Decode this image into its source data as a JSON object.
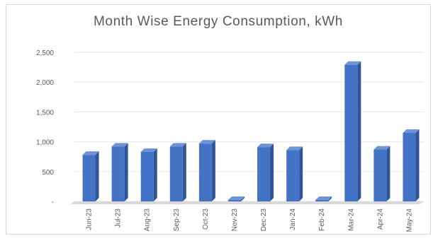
{
  "chart_data": {
    "type": "bar",
    "title": "Month Wise Energy Consumption, kWh",
    "categories": [
      "Jun-23",
      "Jul-23",
      "Aug-23",
      "Sep-23",
      "Oct-23",
      "Nov-23",
      "Dec-23",
      "Jan-24",
      "Feb-24",
      "Mar-24",
      "Apr-24",
      "May-24"
    ],
    "values": [
      780,
      920,
      830,
      920,
      970,
      20,
      910,
      860,
      10,
      2290,
      870,
      1150
    ],
    "ylim": [
      0,
      2500
    ],
    "yticks": [
      0,
      500,
      1000,
      1500,
      2000,
      2500
    ],
    "ytick_labels": [
      "-",
      "500",
      "1,000",
      "1,500",
      "2,000",
      "2,500"
    ],
    "grid": true,
    "bar_color": "#4472C4"
  }
}
